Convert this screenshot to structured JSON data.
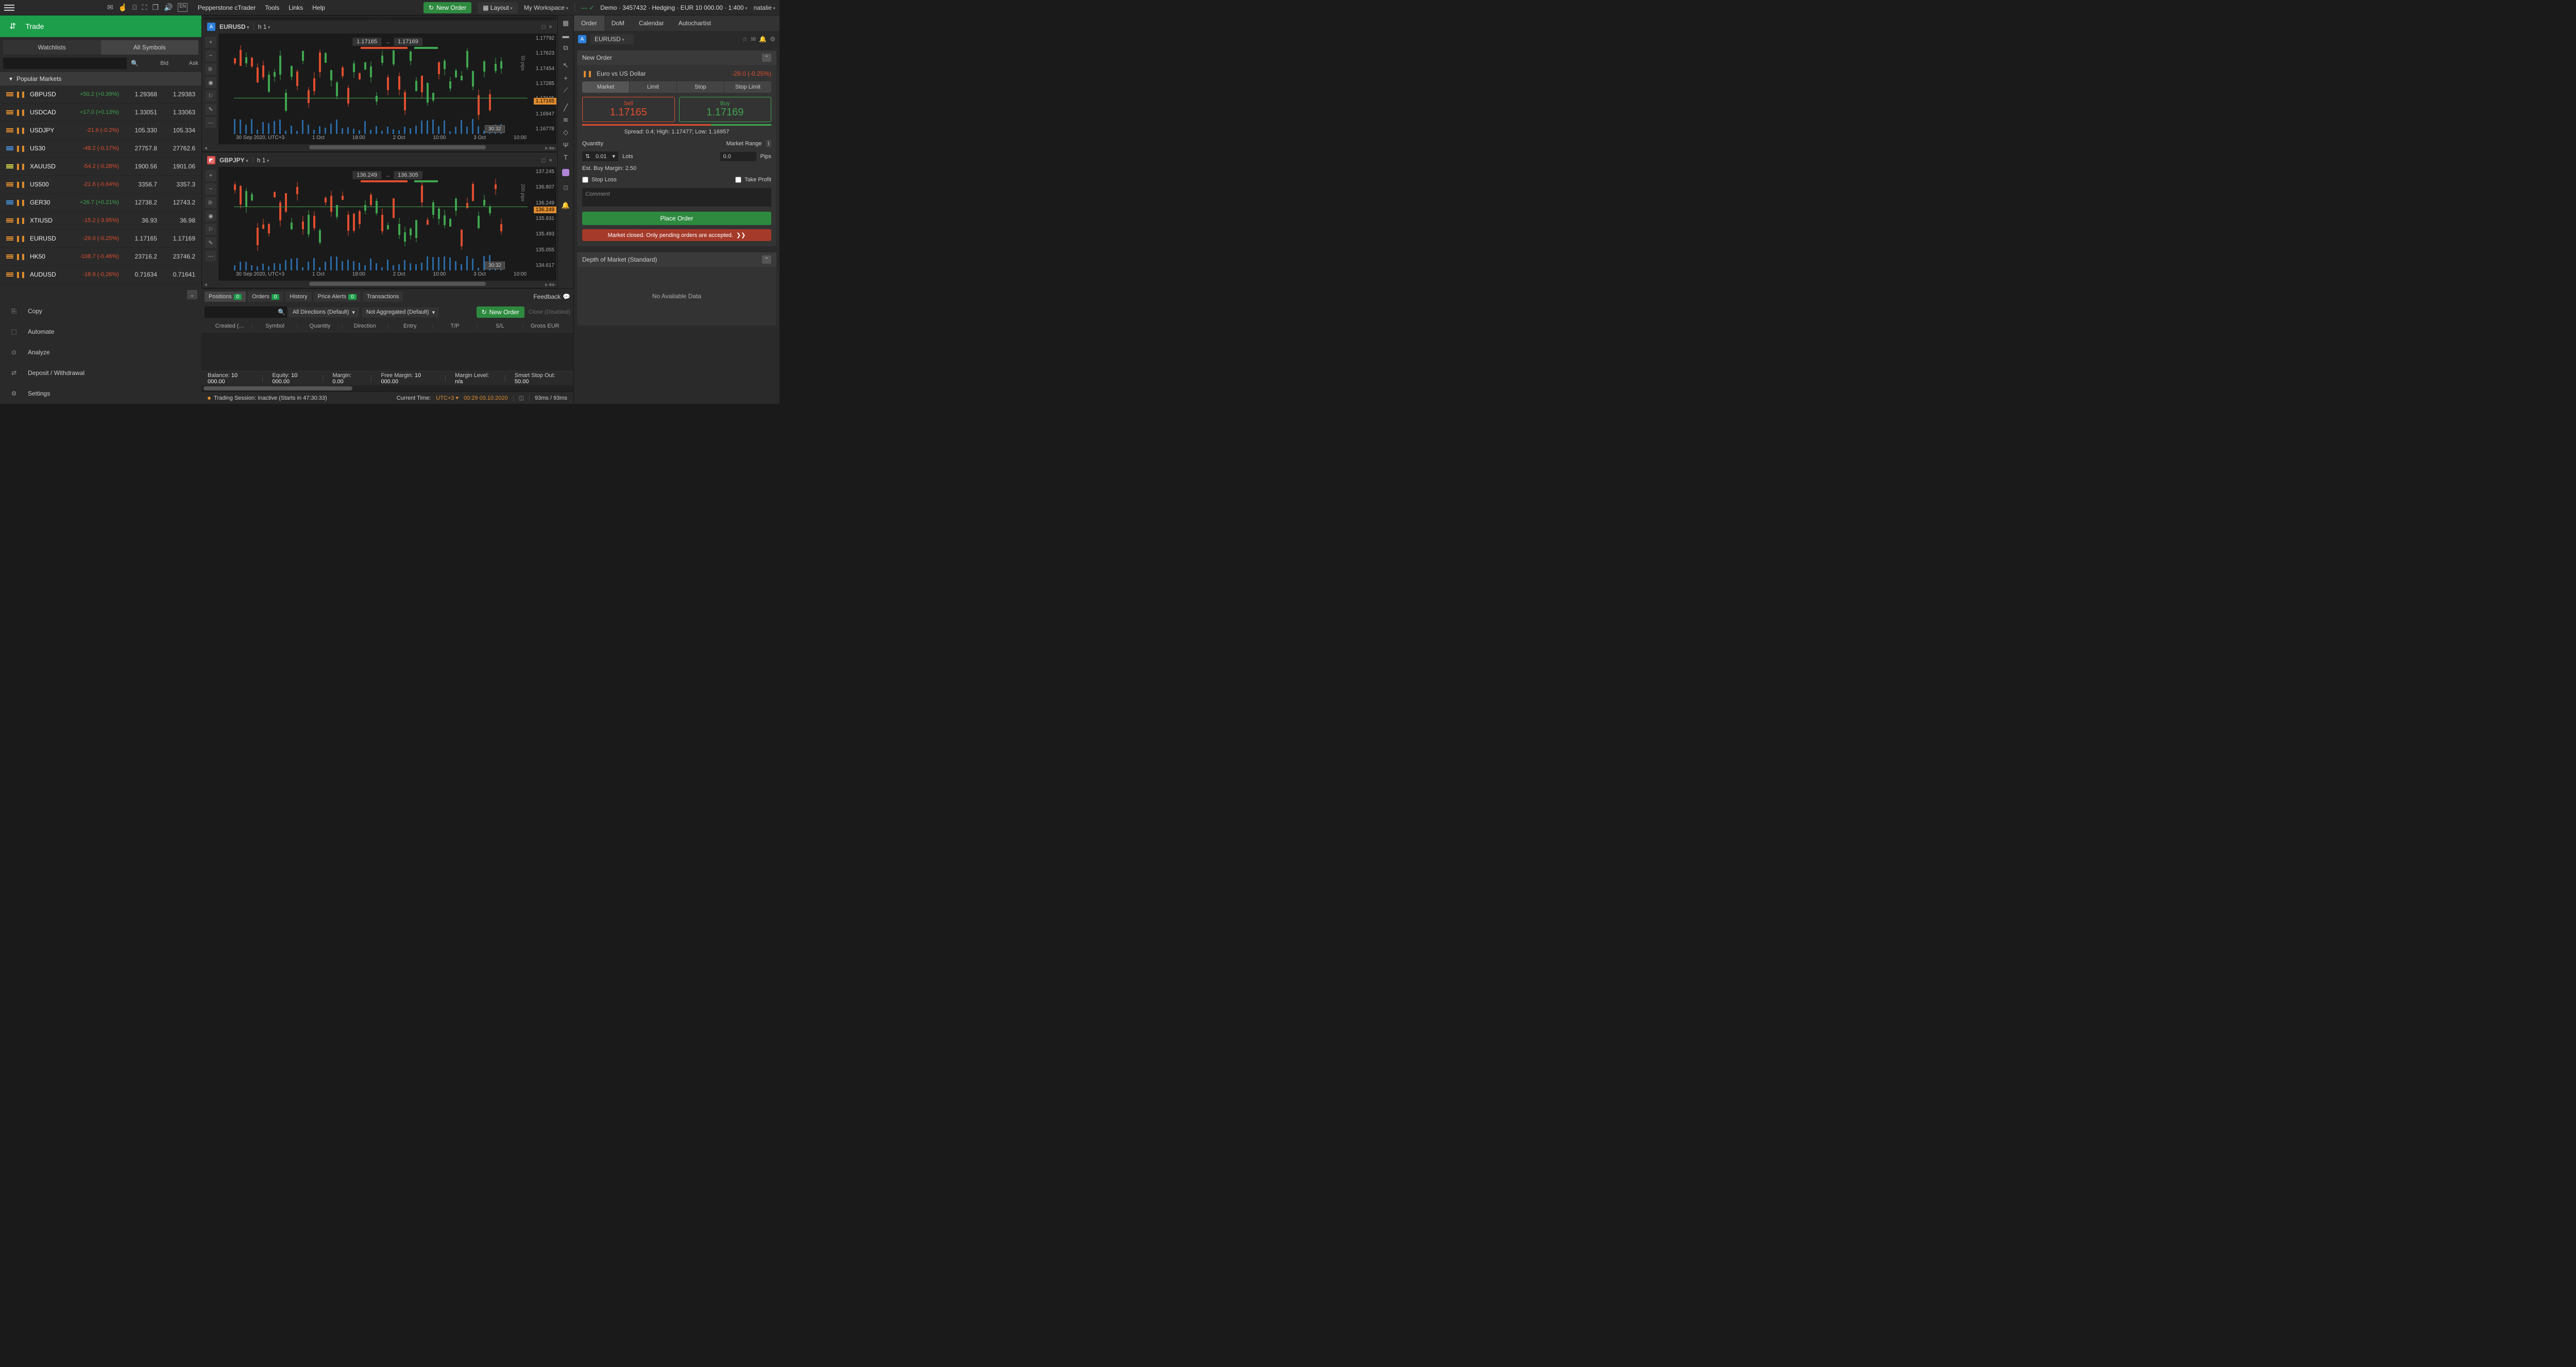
{
  "topbar": {
    "app_name": "Pepperstone cTrader",
    "menus": [
      "Tools",
      "Links",
      "Help"
    ],
    "new_order": "New Order",
    "layout": "Layout",
    "workspace": "My Workspace",
    "account": "Demo · 3457432 · Hedging · EUR 10 000.00 · 1:400",
    "user": "natalie"
  },
  "sidebar": {
    "trade_label": "Trade",
    "tabs": {
      "watchlists": "Watchlists",
      "all_symbols": "All Symbols"
    },
    "search_placeholder": "",
    "bid_header": "Bid",
    "ask_header": "Ask",
    "section_title": "Popular Markets",
    "rows": [
      {
        "sym": "GBPUSD",
        "chg": "+50.2 (+0.39%)",
        "bid": "1.29368",
        "ask": "1.29383",
        "dir": "pos",
        "bar_color": "#e08c2f"
      },
      {
        "sym": "USDCAD",
        "chg": "+17.0 (+0.13%)",
        "bid": "1.33051",
        "ask": "1.33063",
        "dir": "pos",
        "bar_color": "#e08c2f"
      },
      {
        "sym": "USDJPY",
        "chg": "-21.6 (-0.2%)",
        "bid": "105.330",
        "ask": "105.334",
        "dir": "neg",
        "bar_color": "#e08c2f"
      },
      {
        "sym": "US30",
        "chg": "-48.2 (-0.17%)",
        "bid": "27757.8",
        "ask": "27762.6",
        "dir": "neg",
        "bar_color": "#4a8ed8"
      },
      {
        "sym": "XAUUSD",
        "chg": "-54.2 (-0.28%)",
        "bid": "1900.56",
        "ask": "1901.06",
        "dir": "neg",
        "bar_color": "#d9d84a"
      },
      {
        "sym": "US500",
        "chg": "-21.6 (-0.64%)",
        "bid": "3356.7",
        "ask": "3357.3",
        "dir": "neg",
        "bar_color": "#e08c2f"
      },
      {
        "sym": "GER30",
        "chg": "+26.7 (+0.21%)",
        "bid": "12738.2",
        "ask": "12743.2",
        "dir": "pos",
        "bar_color": "#4a8ed8"
      },
      {
        "sym": "XTIUSD",
        "chg": "-15.2 (-3.95%)",
        "bid": "36.93",
        "ask": "36.98",
        "dir": "neg",
        "bar_color": "#e08c2f"
      },
      {
        "sym": "EURUSD",
        "chg": "-29.0 (-0.25%)",
        "bid": "1.17165",
        "ask": "1.17169",
        "dir": "neg",
        "bar_color": "#e08c2f"
      },
      {
        "sym": "HK50",
        "chg": "-108.7 (-0.46%)",
        "bid": "23716.2",
        "ask": "23746.2",
        "dir": "neg",
        "bar_color": "#e08c2f"
      },
      {
        "sym": "AUDUSD",
        "chg": "-18.9 (-0.26%)",
        "bid": "0.71634",
        "ask": "0.71641",
        "dir": "neg",
        "bar_color": "#e08c2f"
      }
    ],
    "bottom_items": [
      {
        "label": "Copy",
        "icon": "⎘"
      },
      {
        "label": "Automate",
        "icon": "⬚"
      },
      {
        "label": "Analyze",
        "icon": "⊙"
      },
      {
        "label": "Deposit / Withdrawal",
        "icon": "⇄"
      },
      {
        "label": "Settings",
        "icon": "⚙"
      }
    ]
  },
  "charts": {
    "0": {
      "symbol": "EURUSD",
      "timeframe": "h 1",
      "bid": "1.17165",
      "ask": "1.17169",
      "countdown": "30:32",
      "price_levels": [
        "1.17792",
        "1.17623",
        "1.17454",
        "1.17285",
        "1.17165",
        "1.16947",
        "1.16778"
      ],
      "time_labels": [
        "30 Sep 2020, UTC+3",
        "1 Oct",
        "18:00",
        "2 Oct",
        "10:00",
        "3 Oct",
        "10:00"
      ],
      "current_price": "1.17165",
      "pip_label": "50 pips",
      "candle_colors": {
        "up": "#3fa64f",
        "down": "#e04e2f"
      },
      "background": "#1a1a1a"
    },
    "1": {
      "symbol": "GBPJPY",
      "timeframe": "h 1",
      "bid": "136.249",
      "ask": "136.305",
      "countdown": "30:32",
      "price_levels": [
        "137.245",
        "136.807",
        "136.249",
        "135.931",
        "135.493",
        "135.055",
        "134.617"
      ],
      "time_labels": [
        "30 Sep 2020, UTC+3",
        "1 Oct",
        "18:00",
        "2 Oct",
        "10:00",
        "3 Oct",
        "10:00"
      ],
      "current_price": "136.249",
      "pip_label": "200 pips",
      "candle_colors": {
        "up": "#3fa64f",
        "down": "#e04e2f"
      },
      "background": "#1a1a1a"
    }
  },
  "positions": {
    "tabs": {
      "positions": "Positions",
      "orders": "Orders",
      "history": "History",
      "price_alerts": "Price Alerts",
      "transactions": "Transactions"
    },
    "badges": {
      "positions": "0",
      "orders": "0",
      "price_alerts": "0"
    },
    "feedback": "Feedback",
    "filters": {
      "directions": "All Directions (Default)",
      "aggregation": "Not Aggregated (Default)"
    },
    "new_order": "New Order",
    "close_disabled": "Close (Disabled)",
    "columns": [
      "Created (…",
      "Symbol",
      "Quantity",
      "Direction",
      "Entry",
      "T/P",
      "S/L",
      "Gross EUR"
    ],
    "footer": {
      "balance_label": "Balance:",
      "balance_val": "10 000.00",
      "equity_label": "Equity:",
      "equity_val": "10 000.00",
      "margin_label": "Margin:",
      "margin_val": "0.00",
      "free_margin_label": "Free Margin:",
      "free_margin_val": "10 000.00",
      "margin_level_label": "Margin Level:",
      "margin_level_val": "n/a",
      "smart_stop_label": "Smart Stop Out:",
      "smart_stop_val": "50.00"
    }
  },
  "right_panel": {
    "tabs": [
      "Order",
      "DoM",
      "Calendar",
      "Autochartist"
    ],
    "symbol": "EURUSD",
    "new_order_title": "New Order",
    "instrument": "Euro vs US Dollar",
    "pl": "-29.0 (-0.25%)",
    "order_types": [
      "Market",
      "Limit",
      "Stop",
      "Stop Limit"
    ],
    "sell_label": "Sell",
    "sell_price": "1.17165",
    "buy_label": "Buy",
    "buy_price": "1.17169",
    "spread_info": "Spread: 0.4; High: 1.17477; Low: 1.16957",
    "quantity_label": "Quantity",
    "quantity_val": "0.01",
    "lots_label": "Lots",
    "market_range_label": "Market Range",
    "market_range_val": "0.0",
    "pips_label": "Pips",
    "margin_est": "Est. Buy Margin: 2.50",
    "stop_loss": "Stop Loss",
    "take_profit": "Take Profit",
    "comment_placeholder": "Comment",
    "place_order": "Place Order",
    "market_closed": "Market closed. Only pending orders are accepted.",
    "dom_title": "Depth of Market (Standard)",
    "dom_empty": "No Available Data"
  },
  "status": {
    "session": "Trading Session: Inactive (Starts in 47:30:33)",
    "current_time_label": "Current Time:",
    "tz": "UTC+3",
    "time": "00:29 03.10.2020",
    "latency": "93ms / 93ms"
  }
}
